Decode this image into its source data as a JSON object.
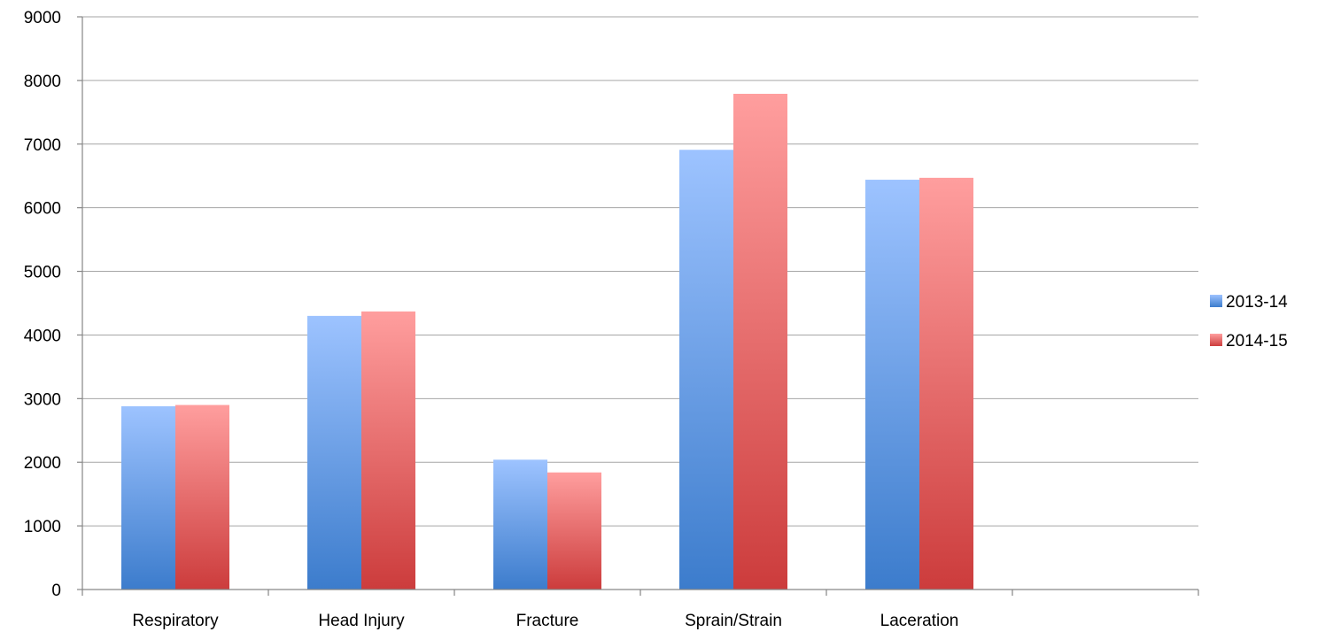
{
  "chart_data": {
    "type": "bar",
    "categories": [
      "Respiratory",
      "Head Injury",
      "Fracture",
      "Sprain/Strain",
      "Laceration",
      ""
    ],
    "series": [
      {
        "name": "2013-14",
        "values": [
          2880,
          4300,
          2040,
          6910,
          6440,
          null
        ],
        "color_top": "#9dc3ff",
        "color_bottom": "#3c7ccc"
      },
      {
        "name": "2014-15",
        "values": [
          2900,
          4370,
          1840,
          7790,
          6470,
          null
        ],
        "color_top": "#ff9e9e",
        "color_bottom": "#cc3c3c"
      }
    ],
    "yticks": [
      "0",
      "1000",
      "2000",
      "3000",
      "4000",
      "5000",
      "6000",
      "7000",
      "8000",
      "9000"
    ],
    "ylim": [
      0,
      9000
    ],
    "title": "",
    "xlabel": "",
    "ylabel": "",
    "grid": true,
    "legend_position": "right"
  }
}
